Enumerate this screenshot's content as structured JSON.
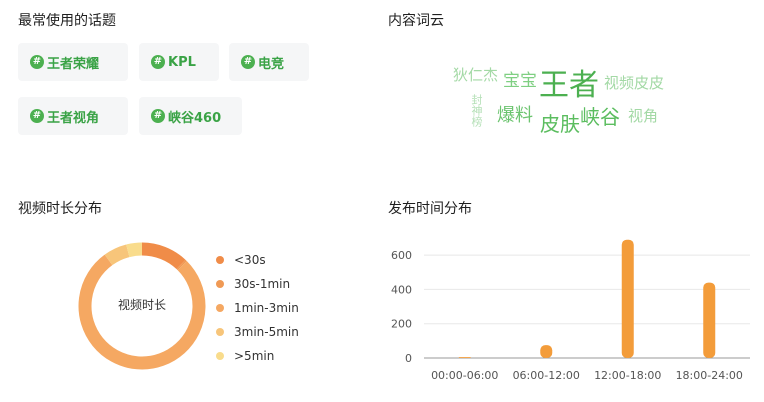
{
  "sections": {
    "topics_title": "最常使用的话题",
    "cloud_title": "内容词云",
    "duration_title": "视频时长分布",
    "time_title": "发布时间分布"
  },
  "topics": [
    {
      "hash": "#",
      "label": "王者荣耀"
    },
    {
      "hash": "#",
      "label": "KPL"
    },
    {
      "hash": "#",
      "label": "电竞"
    },
    {
      "hash": "#",
      "label": "王者视角"
    },
    {
      "hash": "#",
      "label": "峡谷460"
    }
  ],
  "word_cloud": [
    {
      "text": "狄仁杰",
      "color": "#a3d9a5"
    },
    {
      "text": "宝宝",
      "color": "#7fcf82"
    },
    {
      "text": "王者",
      "color": "#4cb050"
    },
    {
      "text": "视频皮皮",
      "color": "#a3d9a5"
    },
    {
      "text": "封神榜",
      "color": "#b5e0b7"
    },
    {
      "text": "爆料",
      "color": "#6cc46f"
    },
    {
      "text": "皮肤",
      "color": "#5bbd5f"
    },
    {
      "text": "峡谷",
      "color": "#5bbd5f"
    },
    {
      "text": "视角",
      "color": "#a3d9a5"
    }
  ],
  "chart_data": [
    {
      "type": "pie",
      "center_label": "视频时长",
      "categories": [
        "<30s",
        "30s-1min",
        "1min-3min",
        "3min-5min",
        ">5min"
      ],
      "values": [
        12,
        0.5,
        77.5,
        6,
        4
      ],
      "colors": [
        "#f08c48",
        "#f09a55",
        "#f5a862",
        "#f7c57a",
        "#f9dc8c"
      ]
    },
    {
      "type": "bar",
      "categories": [
        "00:00-06:00",
        "06:00-12:00",
        "12:00-18:00",
        "18:00-24:00"
      ],
      "values": [
        5,
        75,
        690,
        440
      ],
      "ylim": [
        0,
        700
      ],
      "yticks": [
        0,
        200,
        400,
        600
      ],
      "grid": true,
      "color": "#f39c3a"
    }
  ]
}
